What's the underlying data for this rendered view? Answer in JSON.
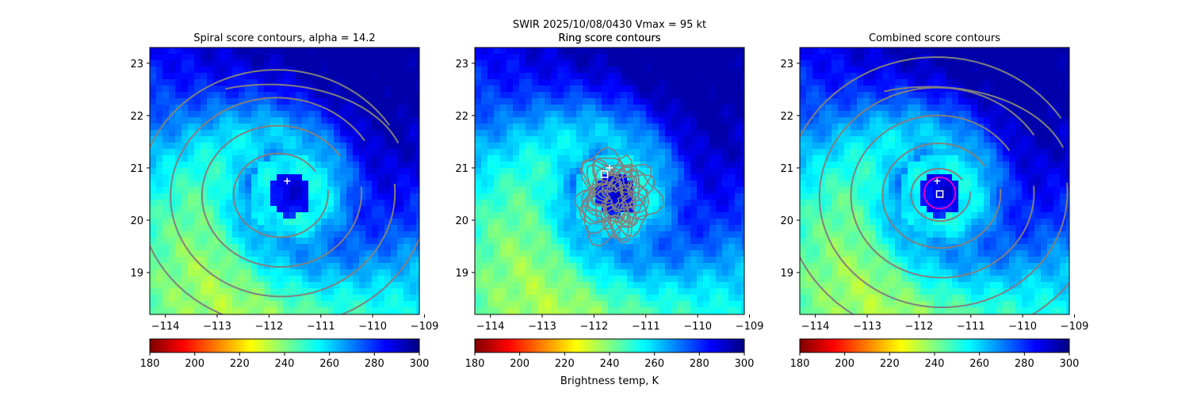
{
  "suptitle": {
    "line1": "SWIR  2025/10/08/0430    Vmax = 95 kt",
    "line2": "Ring score contours"
  },
  "colormap": {
    "name": "jet_r",
    "stops": [
      "#800000",
      "#ff0000",
      "#ff8000",
      "#ffff00",
      "#80ff80",
      "#00ffff",
      "#0080ff",
      "#0000ff",
      "#000080"
    ]
  },
  "chart_data": [
    {
      "type": "heatmap",
      "title": "Spiral score contours, alpha = 14.2",
      "x_ticks": [
        "−114",
        "−113",
        "−112",
        "−111",
        "−110",
        "−109"
      ],
      "y_ticks": [
        "19",
        "20",
        "21",
        "22",
        "23"
      ],
      "xlim": [
        -114.3,
        -109.1
      ],
      "ylim": [
        18.2,
        23.3
      ],
      "colorbar": {
        "ticks": [
          "180",
          "200",
          "220",
          "240",
          "260",
          "280",
          "300"
        ],
        "range": [
          180,
          300
        ],
        "label": ""
      },
      "field_range": [
        205,
        295
      ],
      "eye_center": [
        -111.6,
        20.5
      ],
      "contour_type": "spiral",
      "spiral_center": [
        -111.8,
        20.5
      ],
      "spiral_radii": [
        0.8,
        1.35,
        1.9,
        2.45
      ],
      "spiral_hook_arc": {
        "center": [
          -112.0,
          21.0
        ],
        "radius": 2.9
      },
      "markers": [
        {
          "symbol": "plus",
          "lon": -111.65,
          "lat": 20.75
        }
      ]
    },
    {
      "type": "heatmap",
      "title": "Ring score contours",
      "x_ticks": [
        "−114",
        "−113",
        "−112",
        "−111",
        "−110",
        "−109"
      ],
      "y_ticks": [
        "19",
        "20",
        "21",
        "22",
        "23"
      ],
      "xlim": [
        -114.3,
        -109.1
      ],
      "ylim": [
        18.2,
        23.3
      ],
      "colorbar": {
        "ticks": [
          "180",
          "200",
          "220",
          "240",
          "260",
          "280",
          "300"
        ],
        "range": [
          180,
          300
        ],
        "label": "Brightness temp, K"
      },
      "field_range": [
        205,
        295
      ],
      "eye_center": [
        -111.6,
        20.5
      ],
      "contour_type": "ring-noise",
      "noise_center": [
        -111.6,
        20.45
      ],
      "noise_radius": 1.4,
      "markers": [
        {
          "symbol": "plus",
          "lon": -111.7,
          "lat": 21.0
        },
        {
          "symbol": "square",
          "lon": -111.8,
          "lat": 20.88
        }
      ]
    },
    {
      "type": "heatmap",
      "title": "Combined score contours",
      "x_ticks": [
        "−114",
        "−113",
        "−112",
        "−111",
        "−110",
        "−109"
      ],
      "y_ticks": [
        "19",
        "20",
        "21",
        "22",
        "23"
      ],
      "xlim": [
        -114.3,
        -109.1
      ],
      "ylim": [
        18.2,
        23.3
      ],
      "colorbar": {
        "ticks": [
          "180",
          "200",
          "220",
          "240",
          "260",
          "280",
          "300"
        ],
        "range": [
          180,
          300
        ],
        "label": ""
      },
      "field_range": [
        205,
        295
      ],
      "eye_center": [
        -111.6,
        20.5
      ],
      "contour_type": "spiral",
      "spiral_center": [
        -111.6,
        20.5
      ],
      "spiral_radii": [
        0.5,
        1.0,
        1.55,
        2.1,
        2.7
      ],
      "spiral_hook_arc": {
        "center": [
          -111.8,
          20.9
        ],
        "radius": 3.0
      },
      "markers": [
        {
          "symbol": "plus",
          "lon": -111.65,
          "lat": 20.75
        },
        {
          "symbol": "square",
          "lon": -111.6,
          "lat": 20.5
        },
        {
          "symbol": "circle",
          "lon": -111.6,
          "lat": 20.52,
          "radius_deg": 0.3,
          "color": "#dd00cc"
        }
      ]
    }
  ]
}
